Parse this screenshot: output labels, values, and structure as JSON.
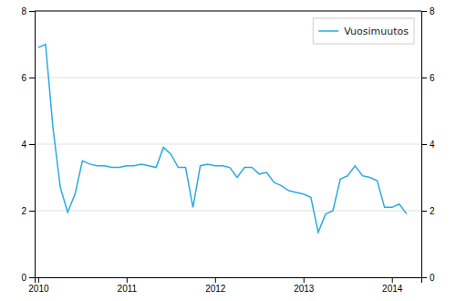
{
  "chart_data": {
    "type": "line",
    "x": [
      2010.0,
      2010.0833333333,
      2010.1666666667,
      2010.25,
      2010.3333333333,
      2010.4166666667,
      2010.5,
      2010.5833333333,
      2010.6666666667,
      2010.75,
      2010.8333333333,
      2010.9166666667,
      2011.0,
      2011.0833333333,
      2011.1666666667,
      2011.25,
      2011.3333333333,
      2011.4166666667,
      2011.5,
      2011.5833333333,
      2011.6666666667,
      2011.75,
      2011.8333333333,
      2011.9166666667,
      2012.0,
      2012.0833333333,
      2012.1666666667,
      2012.25,
      2012.3333333333,
      2012.4166666667,
      2012.5,
      2012.5833333333,
      2012.6666666667,
      2012.75,
      2012.8333333333,
      2012.9166666667,
      2013.0,
      2013.0833333333,
      2013.1666666667,
      2013.25,
      2013.3333333333,
      2013.4166666667,
      2013.5,
      2013.5833333333,
      2013.6666666667,
      2013.75,
      2013.8333333333,
      2013.9166666667,
      2014.0,
      2014.0833333333,
      2014.1666666667
    ],
    "series": [
      {
        "name": "Vuosimuutos",
        "color": "#29ABE2",
        "values": [
          6.9,
          7.0,
          4.5,
          2.7,
          1.95,
          2.5,
          3.5,
          3.4,
          3.35,
          3.35,
          3.3,
          3.3,
          3.35,
          3.35,
          3.4,
          3.35,
          3.3,
          3.9,
          3.7,
          3.3,
          3.3,
          2.1,
          3.35,
          3.4,
          3.35,
          3.35,
          3.3,
          3.0,
          3.3,
          3.3,
          3.1,
          3.15,
          2.85,
          2.75,
          2.6,
          2.55,
          2.5,
          2.4,
          1.35,
          1.9,
          2.0,
          2.95,
          3.05,
          3.35,
          3.05,
          3.0,
          2.9,
          2.1,
          2.1,
          2.2,
          1.9
        ]
      }
    ],
    "xlim": [
      2009.96,
      2014.333
    ],
    "xticks": [
      2010,
      2011,
      2012,
      2013,
      2014
    ],
    "ylim": [
      0,
      8
    ],
    "yticks": [
      0,
      2,
      4,
      6,
      8
    ],
    "y2lim": [
      0,
      8
    ],
    "y2ticks": [
      0,
      2,
      4,
      6,
      8
    ],
    "grid": "y",
    "legend": "upper right"
  }
}
